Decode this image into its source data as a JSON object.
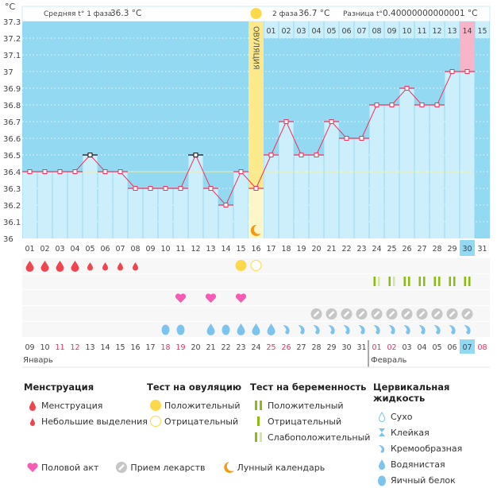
{
  "unit_label": "°C",
  "header": {
    "phase1_label": "Средняя t° 1 фаза",
    "phase1_value": "36.3 °C",
    "phase2_label": "2 фаза",
    "phase2_value": "36.7 °C",
    "diff_label": "Разница t°",
    "diff_value": "0.40000000000001 °C",
    "ovulation_label": "ОВУЛЯЦИЯ"
  },
  "colors": {
    "bg_dark": "#94d9f2",
    "bar": "#cdeefb",
    "line": "#f0325a",
    "ovulation": "#fbe98c",
    "highlight_pink": "#f8b4c8",
    "coverline": "#f5f0a0"
  },
  "chart_data": {
    "type": "line",
    "ylim": [
      36,
      37.3
    ],
    "yticks": [
      "36",
      "36.1",
      "36.2",
      "36.3",
      "36.4",
      "36.5",
      "36.6",
      "36.7",
      "36.8",
      "36.9",
      "37",
      "37.1",
      "37.2",
      "37.3"
    ],
    "days": [
      "01",
      "02",
      "03",
      "04",
      "05",
      "06",
      "07",
      "08",
      "09",
      "10",
      "11",
      "12",
      "13",
      "14",
      "15",
      "16",
      "17",
      "18",
      "19",
      "20",
      "21",
      "22",
      "23",
      "24",
      "25",
      "26",
      "27",
      "28",
      "29",
      "30",
      "31"
    ],
    "temps": [
      36.4,
      36.4,
      36.4,
      36.4,
      36.5,
      36.4,
      36.4,
      36.3,
      36.3,
      36.3,
      36.3,
      36.5,
      36.3,
      36.2,
      36.4,
      36.3,
      36.5,
      36.7,
      36.5,
      36.5,
      36.7,
      36.6,
      36.6,
      36.8,
      36.8,
      36.9,
      36.8,
      36.8,
      37.0,
      37.0,
      null
    ],
    "excluded_days": [
      "05",
      "12"
    ],
    "coverline": 36.4,
    "ovulation_day": "16",
    "current_day": "30",
    "phase2_days": [
      "01",
      "02",
      "03",
      "04",
      "05",
      "06",
      "07",
      "08",
      "09",
      "10",
      "11",
      "12",
      "13",
      "14",
      "15"
    ],
    "phase2_highlight": "14"
  },
  "rows": {
    "menstruation": [
      "heavy",
      "heavy",
      "heavy",
      "heavy",
      "light",
      "light",
      "light",
      "light"
    ],
    "ovulation_test": {
      "15": "positive",
      "16": "negative"
    },
    "pregnancy_test": {
      "24": "weak",
      "25": "weak",
      "26": "positive",
      "27": "positive",
      "28": "positive",
      "29": "positive",
      "30": "positive"
    },
    "sex_days": [
      "11",
      "13",
      "15"
    ],
    "medication_days": [
      "20",
      "21",
      "22",
      "23",
      "24",
      "25",
      "26",
      "27",
      "28",
      "29",
      "30"
    ],
    "cervical_fluid": {
      "10": "eggwhite",
      "11": "eggwhite",
      "13": "watery",
      "14": "eggwhite",
      "15": "watery",
      "16": "watery",
      "17": "watery",
      "18": "creamy",
      "19": "creamy",
      "20": "creamy",
      "21": "creamy",
      "22": "creamy",
      "23": "creamy",
      "24": "creamy",
      "25": "creamy",
      "26": "creamy",
      "27": "creamy",
      "28": "creamy",
      "29": "creamy",
      "30": "creamy"
    }
  },
  "dates": {
    "labels": [
      "09",
      "10",
      "11",
      "12",
      "13",
      "14",
      "15",
      "16",
      "17",
      "18",
      "19",
      "20",
      "21",
      "22",
      "23",
      "24",
      "25",
      "26",
      "27",
      "28",
      "29",
      "30",
      "31",
      "01",
      "02",
      "03",
      "04",
      "05",
      "06",
      "07",
      "08"
    ],
    "weekend": [
      "11",
      "12",
      "18",
      "19",
      "25",
      "26",
      "01",
      "02",
      "08"
    ],
    "months": [
      "Январь",
      "Февраль"
    ]
  },
  "legend": {
    "menstruation": {
      "title": "Менструация",
      "items": [
        "Менструация",
        "Небольшие выделения"
      ]
    },
    "ovulation_test": {
      "title": "Тест на овуляцию",
      "items": [
        "Положительный",
        "Отрицательный"
      ]
    },
    "pregnancy_test": {
      "title": "Тест на беременность",
      "items": [
        "Положительный",
        "Отрицательный",
        "Слабоположительный"
      ]
    },
    "cervical_fluid": {
      "title": "Цервикальная жидкость",
      "items": [
        "Сухо",
        "Клейкая",
        "Кремообразная",
        "Водянистая",
        "Яичный белок"
      ]
    },
    "other": [
      "Половой акт",
      "Прием лекарств",
      "Лунный календарь"
    ]
  }
}
